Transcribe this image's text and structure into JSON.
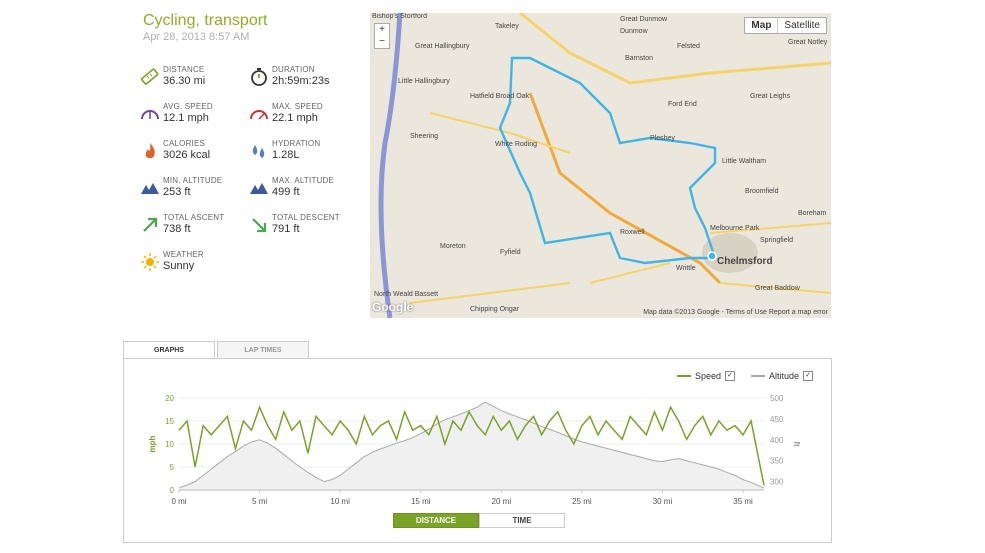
{
  "workout": {
    "title": "Cycling, transport",
    "date": "Apr 28, 2013 8:57 AM"
  },
  "stats": [
    {
      "label": "DISTANCE",
      "value": "36.30 mi",
      "icon": "ruler-icon"
    },
    {
      "label": "DURATION",
      "value": "2h:59m:23s",
      "icon": "stopwatch-icon"
    },
    {
      "label": "AVG. SPEED",
      "value": "12.1 mph",
      "icon": "gauge-icon"
    },
    {
      "label": "MAX. SPEED",
      "value": "22.1 mph",
      "icon": "gauge-max-icon"
    },
    {
      "label": "CALORIES",
      "value": "3026 kcal",
      "icon": "flame-icon"
    },
    {
      "label": "HYDRATION",
      "value": "1.28L",
      "icon": "droplets-icon"
    },
    {
      "label": "MIN. ALTITUDE",
      "value": "253 ft",
      "icon": "mountain-icon"
    },
    {
      "label": "MAX. ALTITUDE",
      "value": "499 ft",
      "icon": "mountain-icon"
    },
    {
      "label": "TOTAL ASCENT",
      "value": "738 ft",
      "icon": "arrow-up-right-icon"
    },
    {
      "label": "TOTAL DESCENT",
      "value": "791 ft",
      "icon": "arrow-down-right-icon"
    },
    {
      "label": "WEATHER",
      "value": "Sunny",
      "icon": "sun-icon"
    }
  ],
  "map": {
    "btn_map": "Map",
    "btn_satellite": "Satellite",
    "zoom_in": "+",
    "zoom_out": "−",
    "footer": "Map data ©2013 Google - Terms of Use   Report a map error",
    "watermark": "Google",
    "labels": [
      "Bishop's Stortford",
      "Great Hallingbury",
      "Little Hallingbury",
      "Hatfield Broad Oak",
      "Sheering",
      "White Roding",
      "Moreton",
      "Fyfield",
      "North Weald Bassett",
      "Chipping Ongar",
      "Great Dunmow",
      "Felsted",
      "Barnston",
      "Ford End",
      "Pleshey",
      "Little Waltham",
      "Great Leighs",
      "Great Notley",
      "Broomfield",
      "Melbourne Park",
      "Springfield",
      "Chelmsford",
      "Roxwell",
      "Writtle",
      "Great Baddow",
      "Boreham",
      "Takeley",
      "Dunmow"
    ],
    "route_color": "#3fb5e6"
  },
  "tabs": {
    "graphs": "GRAPHS",
    "lap_times": "LAP TIMES"
  },
  "legend": {
    "speed": "Speed",
    "altitude": "Altitude",
    "speed_color": "#7aa428",
    "altitude_color": "#aaaaaa",
    "check": "✓"
  },
  "axis_toggle": {
    "distance": "DISTANCE",
    "time": "TIME"
  },
  "chart_data": {
    "type": "line",
    "xlabel": "",
    "ylabel_left": "mph",
    "ylabel_right": "ft",
    "x_ticks": [
      "0 mi",
      "5 mi",
      "10 mi",
      "15 mi",
      "20 mi",
      "25 mi",
      "30 mi",
      "35 mi"
    ],
    "y_left_ticks": [
      "0",
      "5",
      "10",
      "15",
      "20"
    ],
    "y_right_ticks": [
      "300",
      "350",
      "400",
      "450",
      "500"
    ],
    "ylim_left": [
      0,
      20
    ],
    "ylim_right": [
      280,
      500
    ],
    "xlim": [
      0,
      36.3
    ],
    "x": [
      0,
      0.5,
      1,
      1.5,
      2,
      2.5,
      3,
      3.5,
      4,
      4.5,
      5,
      5.5,
      6,
      6.5,
      7,
      7.5,
      8,
      8.5,
      9,
      9.5,
      10,
      10.5,
      11,
      11.5,
      12,
      12.5,
      13,
      13.5,
      14,
      14.5,
      15,
      15.5,
      16,
      16.5,
      17,
      17.5,
      18,
      18.5,
      19,
      19.5,
      20,
      20.5,
      21,
      21.5,
      22,
      22.5,
      23,
      23.5,
      24,
      24.5,
      25,
      25.5,
      26,
      26.5,
      27,
      27.5,
      28,
      28.5,
      29,
      29.5,
      30,
      30.5,
      31,
      31.5,
      32,
      32.5,
      33,
      33.5,
      34,
      34.5,
      35,
      35.5,
      36.3
    ],
    "series": [
      {
        "name": "Speed",
        "axis": "left",
        "color": "#7aa428",
        "values": [
          13,
          15,
          5,
          14,
          12,
          14,
          16,
          9,
          15,
          13,
          18,
          14,
          11,
          17,
          13,
          15,
          8,
          16,
          14,
          12,
          15,
          13,
          10,
          16,
          12,
          14,
          15,
          11,
          17,
          13,
          14,
          12,
          16,
          10,
          15,
          13,
          17,
          14,
          12,
          16,
          13,
          15,
          11,
          14,
          16,
          12,
          15,
          17,
          13,
          10,
          14,
          16,
          12,
          15,
          13,
          11,
          16,
          14,
          12,
          17,
          13,
          18,
          15,
          11,
          14,
          16,
          12,
          15,
          13,
          14,
          12,
          15,
          1
        ]
      },
      {
        "name": "Altitude",
        "axis": "right",
        "color": "#aaaaaa",
        "values": [
          285,
          292,
          300,
          315,
          330,
          345,
          360,
          372,
          385,
          395,
          400,
          392,
          380,
          365,
          350,
          335,
          322,
          310,
          300,
          305,
          315,
          330,
          345,
          360,
          370,
          378,
          385,
          392,
          398,
          405,
          415,
          425,
          438,
          448,
          455,
          462,
          470,
          478,
          490,
          480,
          470,
          462,
          455,
          448,
          440,
          432,
          425,
          418,
          410,
          402,
          395,
          390,
          385,
          380,
          375,
          370,
          365,
          360,
          355,
          350,
          348,
          352,
          355,
          350,
          345,
          340,
          335,
          330,
          322,
          315,
          305,
          298,
          285
        ]
      }
    ]
  }
}
